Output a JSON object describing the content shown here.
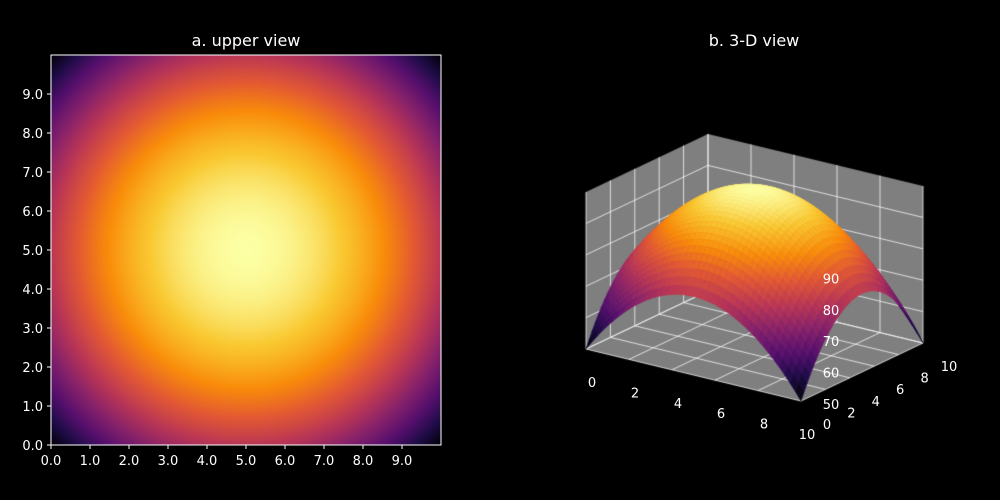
{
  "figure": {
    "background": "#000000",
    "text_color": "#ffffff"
  },
  "chart_data": [
    {
      "type": "heatmap",
      "title": "a. upper view",
      "colormap": "inferno",
      "function": "z = 100 - (x - 5)^2 - (y - 5)^2",
      "x_range": [
        0,
        10
      ],
      "y_range": [
        0,
        10
      ],
      "x_ticks": [
        "0.0",
        "1.0",
        "2.0",
        "3.0",
        "4.0",
        "5.0",
        "6.0",
        "7.0",
        "8.0",
        "9.0"
      ],
      "y_ticks": [
        "0.0",
        "1.0",
        "2.0",
        "3.0",
        "4.0",
        "5.0",
        "6.0",
        "7.0",
        "8.0",
        "9.0"
      ],
      "z_range": [
        50,
        100
      ],
      "peak": {
        "x": 5,
        "y": 5,
        "z": 100
      },
      "corner_value": 50
    },
    {
      "type": "surface",
      "title": "b. 3-D view",
      "colormap": "inferno",
      "function": "z = 100 - (x - 5)^2 - (y - 5)^2",
      "x_ticks": [
        "0",
        "2",
        "4",
        "6",
        "8",
        "10"
      ],
      "y_ticks": [
        "0",
        "2",
        "4",
        "6",
        "8",
        "10"
      ],
      "z_ticks": [
        "50",
        "60",
        "70",
        "80",
        "90"
      ],
      "x_range": [
        0,
        10
      ],
      "y_range": [
        0,
        10
      ],
      "z_range": [
        50,
        100
      ],
      "pane_color": "#7f7f7f",
      "grid": true
    }
  ]
}
